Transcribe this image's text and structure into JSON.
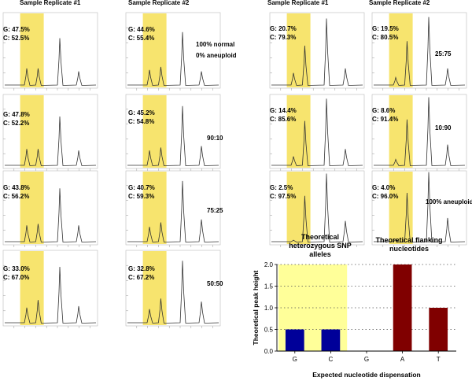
{
  "column_titles": [
    "Sample Replicate #1",
    "Sample Replicate #2",
    "Sample Replicate #1",
    "Sample Replicate #2"
  ],
  "left_rows": [
    {
      "mix_lines": [
        "100% normal",
        "0% aneuploid"
      ],
      "rep1": {
        "g": "G: 47.5%",
        "c": "C: 52.5%"
      },
      "rep2": {
        "g": "G: 44.6%",
        "c": "C: 55.4%"
      }
    },
    {
      "mix_lines": [
        "90:10"
      ],
      "rep1": {
        "g": "G: 47.8%",
        "c": "C: 52.2%"
      },
      "rep2": {
        "g": "G: 45.2%",
        "c": "C: 54.8%"
      }
    },
    {
      "mix_lines": [
        "75:25"
      ],
      "rep1": {
        "g": "G: 43.8%",
        "c": "C: 56.2%"
      },
      "rep2": {
        "g": "G: 40.7%",
        "c": "C: 59.3%"
      }
    },
    {
      "mix_lines": [
        "50:50"
      ],
      "rep1": {
        "g": "G: 33.0%",
        "c": "C: 67.0%"
      },
      "rep2": {
        "g": "G: 32.8%",
        "c": "C: 67.2%"
      }
    }
  ],
  "right_rows": [
    {
      "mix_lines": [
        "25:75"
      ],
      "rep1": {
        "g": "G: 20.7%",
        "c": "C: 79.3%"
      },
      "rep2": {
        "g": "G: 19.5%",
        "c": "C: 80.5%"
      }
    },
    {
      "mix_lines": [
        "10:90"
      ],
      "rep1": {
        "g": "G: 14.4%",
        "c": "C: 85.6%"
      },
      "rep2": {
        "g": "G: 8.6%",
        "c": "C: 91.4%"
      }
    },
    {
      "mix_lines": [
        "100% aneuploid"
      ],
      "rep1": {
        "g": "G: 2.5%",
        "c": "C: 97.5%"
      },
      "rep2": {
        "g": "G: 4.0%",
        "c": "C: 96.0%"
      }
    }
  ],
  "theoretical": {
    "snp_title_lines": [
      "Theoretical",
      "heterozygous SNP",
      "alleles"
    ],
    "flank_title_lines": [
      "Theoretical flanking",
      "nucleotides"
    ]
  },
  "colors": {
    "highlight": "#f7e46e",
    "highlight_light": "#ffff99",
    "snp_bar": "#000099",
    "flank_bar": "#800000",
    "trace": "#333333"
  },
  "chart_data": {
    "type": "bar",
    "title": "",
    "xlabel": "Expected nucleotide dispensation",
    "ylabel": "Theoretical peak height",
    "categories": [
      "G",
      "C",
      "G",
      "A",
      "T"
    ],
    "values": [
      0.5,
      0.5,
      0,
      2.0,
      1.0
    ],
    "groups": [
      "snp",
      "snp",
      "none",
      "flank",
      "flank"
    ],
    "ylim": [
      0,
      2.0
    ],
    "yticks": [
      "0.0",
      "0.5",
      "1.0",
      "1.5",
      "2.0"
    ],
    "grid": true
  }
}
